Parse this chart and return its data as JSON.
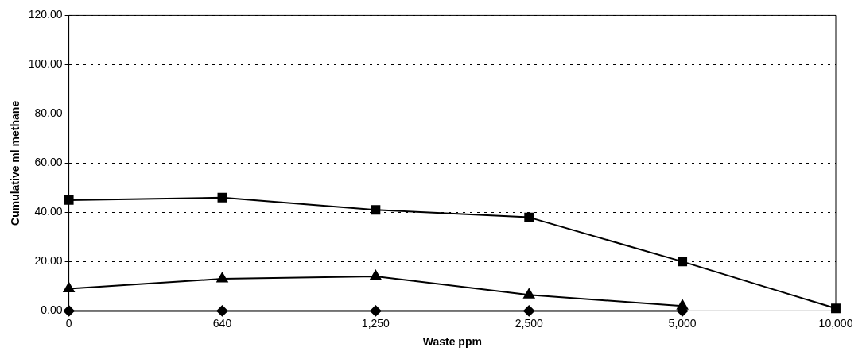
{
  "chart_data": {
    "type": "line",
    "xlabel": "Waste ppm",
    "ylabel": "Cumulative ml methane",
    "categories": [
      "0",
      "640",
      "1,250",
      "2,500",
      "5,000",
      "10,000"
    ],
    "series": [
      {
        "color": "#000000",
        "marker": "diamond",
        "values": [
          0,
          0,
          0,
          0,
          0,
          null
        ]
      },
      {
        "color": "#000000",
        "marker": "square",
        "values": [
          45,
          46,
          41,
          38,
          20,
          1
        ]
      },
      {
        "color": "#000000",
        "marker": "triangle",
        "values": [
          9,
          13,
          14,
          6.5,
          2,
          null
        ]
      }
    ],
    "ylim": [
      0,
      120
    ],
    "yticks": [
      {
        "value": 0,
        "label": "0.00"
      },
      {
        "value": 20,
        "label": "20.00"
      },
      {
        "value": 40,
        "label": "40.00"
      },
      {
        "value": 60,
        "label": "60.00"
      },
      {
        "value": 80,
        "label": "80.00"
      },
      {
        "value": 100,
        "label": "100.00"
      },
      {
        "value": 120,
        "label": "120.00"
      }
    ],
    "grid": "y",
    "legend": false,
    "line_style": "solid"
  }
}
